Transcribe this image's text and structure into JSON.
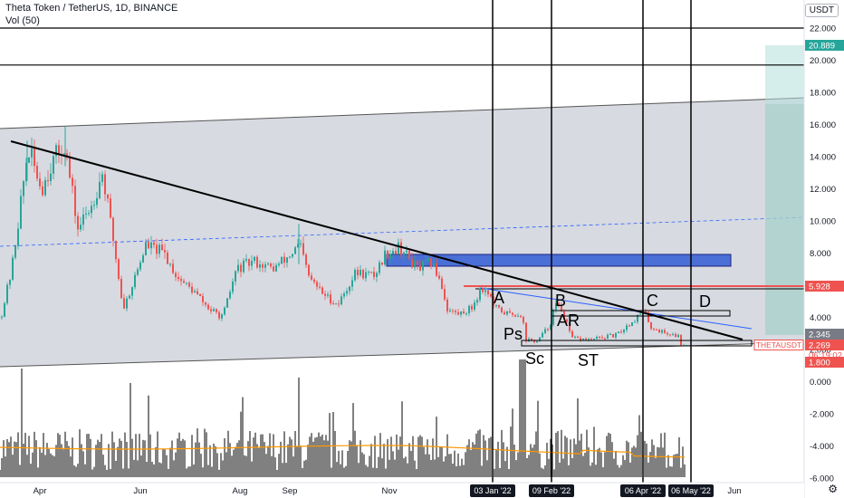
{
  "header": {
    "title": "Theta Token / TetherUS, 1D, BINANCE",
    "volume_label": "Vol (50)",
    "currency_badge": "USDT"
  },
  "colors": {
    "up": "#26a69a",
    "down": "#ef5350",
    "volume": "#000000",
    "volume_ma": "#ff9800",
    "channel_fill": "#d1d4dc",
    "zone_fill": "#4a6fd6",
    "target_green": "#b2dfdb",
    "target_red": "#ef5350",
    "trend_blue": "#2962ff"
  },
  "chart_data": {
    "type": "candlestick",
    "title": "Theta Token / TetherUS, 1D, BINANCE",
    "symbol": "THETAUSDT",
    "x_tick_labels": [
      "Apr",
      "Jun",
      "Aug",
      "Sep",
      "Nov",
      "Jun"
    ],
    "y_tick_labels": [
      "22.000",
      "20.000",
      "18.000",
      "16.000",
      "14.000",
      "12.000",
      "10.000",
      "8.000",
      "6.000",
      "4.000",
      "2.000",
      "0.000",
      "-2.000",
      "-4.000",
      "-6.000"
    ],
    "y_range": [
      -6.5,
      22.6
    ],
    "date_labels": [
      "03 Jan '22",
      "09 Feb '22",
      "06 Apr '22",
      "06 May '22"
    ],
    "price_labels": [
      {
        "value": "20.889",
        "color": "#26a69a"
      },
      {
        "value": "5.928",
        "color": "#ef5350"
      },
      {
        "value": "2.345",
        "color": "#787b86"
      },
      {
        "value": "2.269",
        "color": "#ef5350"
      },
      {
        "value": "06:19:02",
        "color": "#ef5350"
      },
      {
        "value": "1.800",
        "color": "#ef5350"
      }
    ],
    "symbol_badge": "THETAUSDT",
    "horizontal_lines": [
      22.0,
      19.7
    ],
    "annotations": [
      "A",
      "B",
      "C",
      "D",
      "AR",
      "Ps",
      "Sc",
      "ST"
    ],
    "current_price": 2.269,
    "volume_ma_period": 50
  }
}
